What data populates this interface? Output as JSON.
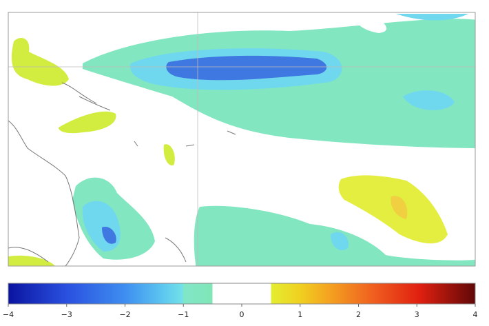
{
  "colorbar": {
    "min": -4,
    "max": 4,
    "ticks": [
      {
        "value": -4,
        "label": "−4"
      },
      {
        "value": -3,
        "label": "−3"
      },
      {
        "value": -2,
        "label": "−2"
      },
      {
        "value": -1,
        "label": "−1"
      },
      0,
      1,
      2,
      3,
      4
    ]
  }
}
